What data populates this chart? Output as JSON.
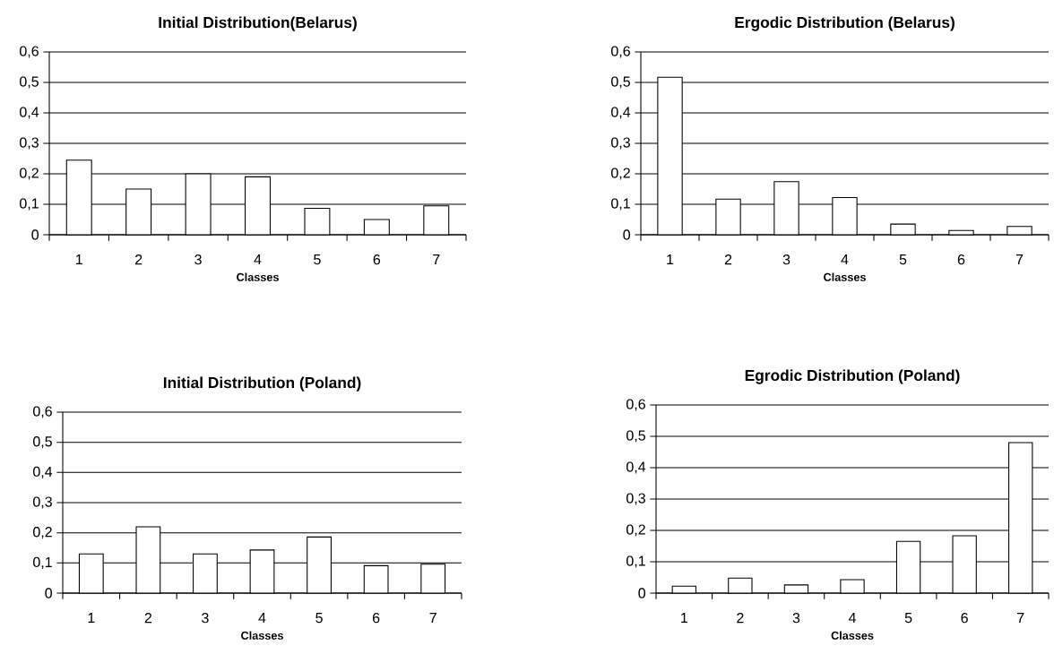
{
  "chart_data": [
    {
      "type": "bar",
      "title": "Initial Distribution(Belarus)",
      "xlabel": "Classes",
      "categories": [
        "1",
        "2",
        "3",
        "4",
        "5",
        "6",
        "7"
      ],
      "values": [
        0.245,
        0.15,
        0.2,
        0.19,
        0.087,
        0.05,
        0.095
      ],
      "color": "#ffffff",
      "ylim": [
        0,
        0.6
      ],
      "yticks": [
        {
          "value": 0,
          "label": "0"
        },
        {
          "value": 0.1,
          "label": "0,1"
        },
        {
          "value": 0.2,
          "label": "0,2"
        },
        {
          "value": 0.3,
          "label": "0,3"
        },
        {
          "value": 0.4,
          "label": "0,4"
        },
        {
          "value": 0.5,
          "label": "0,5"
        },
        {
          "value": 0.6,
          "label": "0,6"
        }
      ],
      "grid": "y"
    },
    {
      "type": "bar",
      "title": "Ergodic Distribution (Belarus)",
      "xlabel": "Classes",
      "categories": [
        "1",
        "2",
        "3",
        "4",
        "5",
        "6",
        "7"
      ],
      "values": [
        0.517,
        0.117,
        0.174,
        0.122,
        0.035,
        0.014,
        0.027
      ],
      "color": "#ffffff",
      "ylim": [
        0,
        0.6
      ],
      "yticks": [
        {
          "value": 0,
          "label": "0"
        },
        {
          "value": 0.1,
          "label": "0,1"
        },
        {
          "value": 0.2,
          "label": "0,2"
        },
        {
          "value": 0.3,
          "label": "0,3"
        },
        {
          "value": 0.4,
          "label": "0,4"
        },
        {
          "value": 0.5,
          "label": "0,5"
        },
        {
          "value": 0.6,
          "label": "0,6"
        }
      ],
      "grid": "y"
    },
    {
      "type": "bar",
      "title": "Initial Distribution (Poland)",
      "xlabel": "Classes",
      "categories": [
        "1",
        "2",
        "3",
        "4",
        "5",
        "6",
        "7"
      ],
      "values": [
        0.13,
        0.22,
        0.13,
        0.143,
        0.186,
        0.091,
        0.096
      ],
      "color": "#ffffff",
      "ylim": [
        0,
        0.6
      ],
      "yticks": [
        {
          "value": 0,
          "label": "0"
        },
        {
          "value": 0.1,
          "label": "0,1"
        },
        {
          "value": 0.2,
          "label": "0,2"
        },
        {
          "value": 0.3,
          "label": "0,3"
        },
        {
          "value": 0.4,
          "label": "0,4"
        },
        {
          "value": 0.5,
          "label": "0,5"
        },
        {
          "value": 0.6,
          "label": "0,6"
        }
      ],
      "grid": "y"
    },
    {
      "type": "bar",
      "title": "Egrodic Distribution (Poland)",
      "xlabel": "Classes",
      "categories": [
        "1",
        "2",
        "3",
        "4",
        "5",
        "6",
        "7"
      ],
      "values": [
        0.022,
        0.048,
        0.026,
        0.043,
        0.165,
        0.183,
        0.48
      ],
      "color": "#ffffff",
      "ylim": [
        0,
        0.6
      ],
      "yticks": [
        {
          "value": 0,
          "label": "0"
        },
        {
          "value": 0.1,
          "label": "0,1"
        },
        {
          "value": 0.2,
          "label": "0,2"
        },
        {
          "value": 0.3,
          "label": "0,3"
        },
        {
          "value": 0.4,
          "label": "0,4"
        },
        {
          "value": 0.5,
          "label": "0,5"
        },
        {
          "value": 0.6,
          "label": "0,6"
        }
      ],
      "grid": "y"
    }
  ]
}
